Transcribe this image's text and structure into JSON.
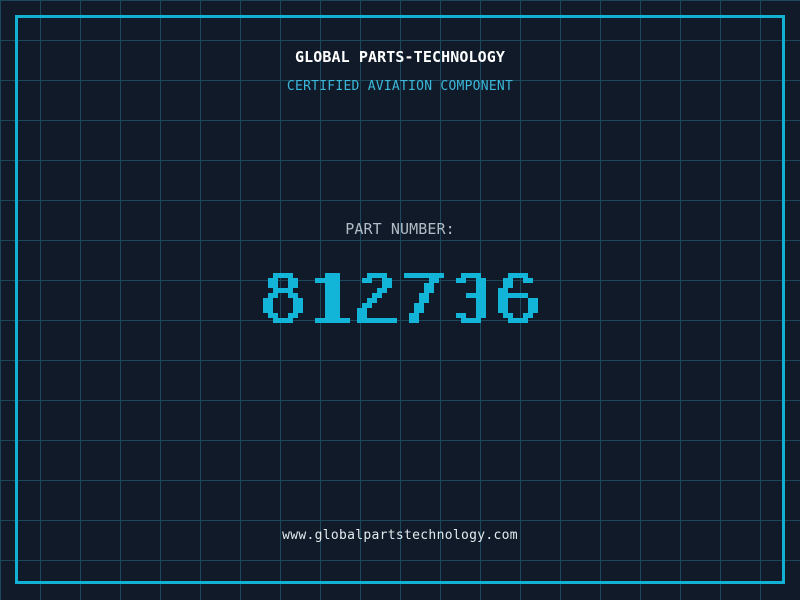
{
  "header": {
    "title": "GLOBAL PARTS-TECHNOLOGY",
    "subtitle": "CERTIFIED AVIATION COMPONENT"
  },
  "part": {
    "label": "PART NUMBER:",
    "number": "812736"
  },
  "footer": {
    "website": "www.globalpartstechnology.com"
  },
  "colors": {
    "background": "#101a29",
    "grid_line": "#1b4a5f",
    "frame": "#12b0d2",
    "title": "#ffffff",
    "subtitle": "#3bb8da",
    "part_label": "#b2bcc6",
    "digits": "#12b5d8",
    "website": "#e4ebef"
  }
}
